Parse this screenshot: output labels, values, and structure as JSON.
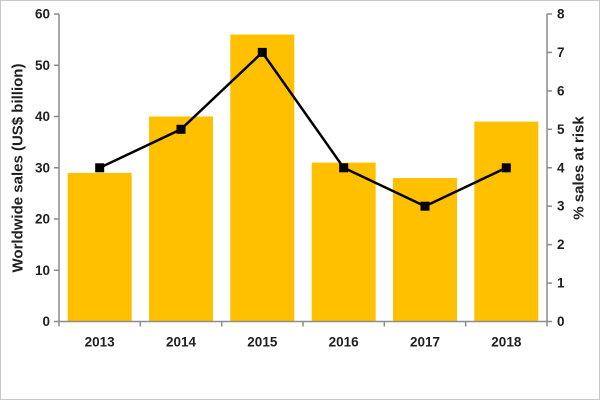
{
  "chart_data": {
    "type": "bar",
    "title": "",
    "categories": [
      "2013",
      "2014",
      "2015",
      "2016",
      "2017",
      "2018"
    ],
    "series": [
      {
        "name": "Worldwide sales (US$ billion)",
        "type": "bar",
        "axis": "left",
        "color": "#FFC000",
        "values": [
          29,
          40,
          56,
          31,
          28,
          39
        ]
      },
      {
        "name": "% sales at risk",
        "type": "line",
        "axis": "right",
        "color": "#000000",
        "marker": "square",
        "values": [
          4,
          5,
          7,
          4,
          3,
          4
        ]
      }
    ],
    "left_axis": {
      "label": "Worldwide sales (US$ billion)",
      "min": 0,
      "max": 60,
      "step": 10,
      "ticks": [
        "0",
        "10",
        "20",
        "30",
        "40",
        "50",
        "60"
      ]
    },
    "right_axis": {
      "label": "% sales at risk",
      "min": 0,
      "max": 8,
      "step": 1,
      "ticks": [
        "0",
        "1",
        "2",
        "3",
        "4",
        "5",
        "6",
        "7",
        "8"
      ]
    },
    "grid": false,
    "legend": "none"
  },
  "colors": {
    "bar": "#FFC000",
    "line": "#000000",
    "axis": "#8C8C8C",
    "tick_label": "#1F1F1F",
    "background": "#FFFFFF",
    "border": "#C9C9C9"
  }
}
